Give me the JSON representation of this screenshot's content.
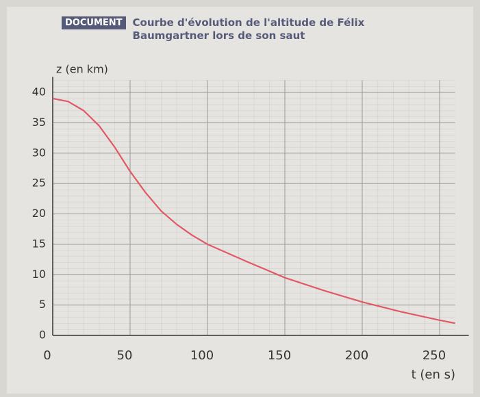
{
  "chart_data": {
    "type": "line",
    "badge": "DOCUMENT",
    "title": "Courbe d'évolution de l'altitude de Félix Baumgartner lors de son saut",
    "y_label": "z (en km)",
    "x_label": "t (en s)",
    "x": [
      0,
      10,
      20,
      30,
      40,
      50,
      60,
      70,
      80,
      90,
      100,
      125,
      150,
      175,
      200,
      225,
      250,
      260
    ],
    "series": [
      {
        "name": "altitude",
        "color": "#e05a66",
        "values": [
          39,
          38.5,
          37,
          34.5,
          31,
          27,
          23.5,
          20.5,
          18.3,
          16.5,
          15,
          12.2,
          9.5,
          7.4,
          5.5,
          3.9,
          2.5,
          2
        ]
      }
    ],
    "xlim": [
      0,
      260
    ],
    "ylim": [
      0,
      42
    ],
    "xticks": [
      0,
      50,
      100,
      150,
      200,
      250
    ],
    "yticks": [
      0,
      5,
      10,
      15,
      20,
      25,
      30,
      35,
      40
    ],
    "grid": true
  }
}
